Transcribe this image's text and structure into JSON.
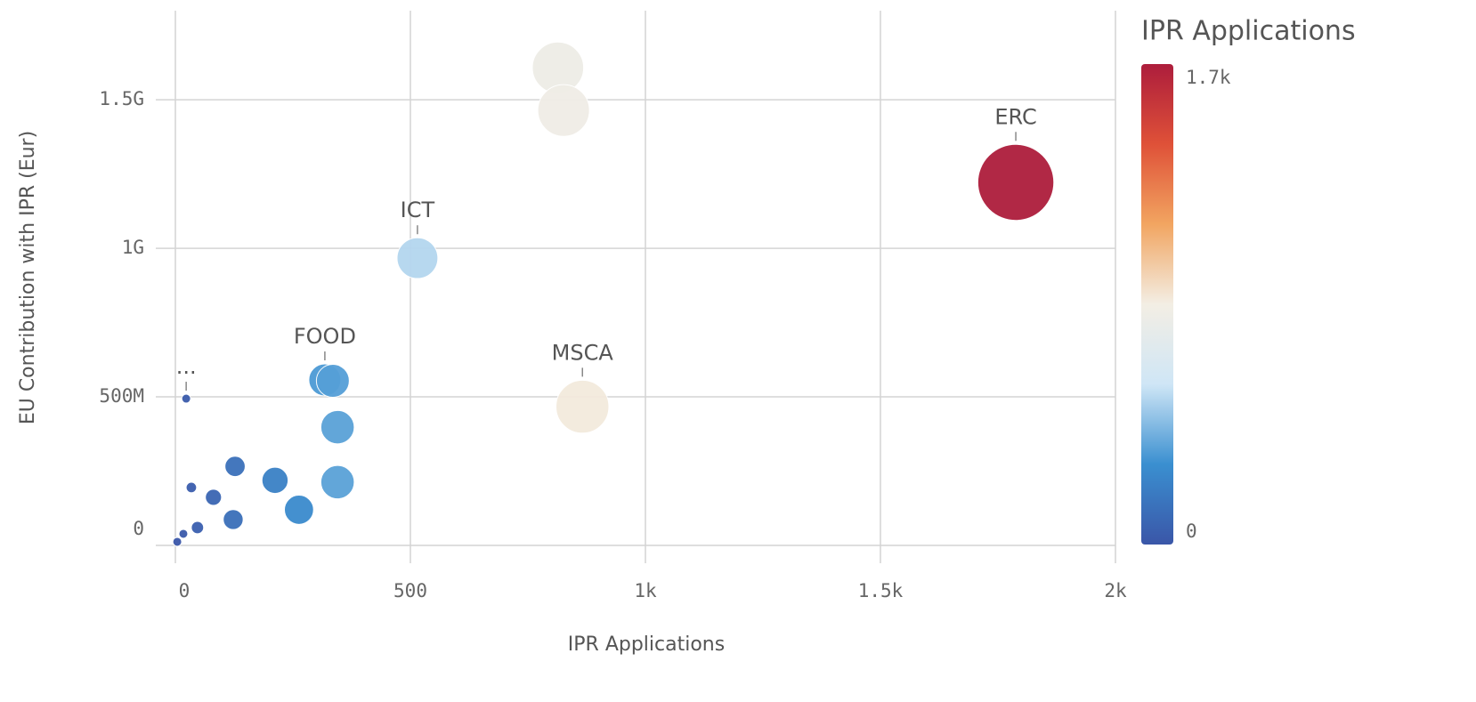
{
  "chart_data": {
    "type": "scatter",
    "xlabel": "IPR Applications",
    "ylabel": "EU Contribution with IPR (Eur)",
    "x": [
      1788,
      814,
      826,
      515,
      866,
      318,
      335,
      345,
      345,
      212,
      263,
      127,
      123,
      81,
      34,
      47,
      17,
      4,
      23
    ],
    "values": [
      1222000000,
      1608000000,
      1464000000,
      967000000,
      467000000,
      557000000,
      554000000,
      398000000,
      213000000,
      219000000,
      120000000,
      266000000,
      87000000,
      162000000,
      195000000,
      60000000,
      39000000,
      12000000,
      494000000
    ],
    "labels": [
      "ERC",
      null,
      null,
      "ICT",
      "MSCA",
      "FOOD",
      null,
      null,
      null,
      null,
      null,
      null,
      null,
      null,
      null,
      null,
      null,
      null,
      "..."
    ],
    "xlim": [
      0,
      2000
    ],
    "xticks": [
      0,
      500,
      {
        "value": 1000,
        "label": "1k"
      },
      {
        "value": 1500,
        "label": "1.5k"
      },
      {
        "value": 2000,
        "label": "2k"
      }
    ],
    "ylim": [
      0,
      1800000000
    ],
    "yticks": [
      0,
      {
        "value": 500000000,
        "label": "500M"
      },
      {
        "value": 1000000000,
        "label": "1G"
      },
      {
        "value": 1500000000,
        "label": "1.5G"
      }
    ],
    "grid": true,
    "legend_title": "IPR Applications",
    "colorlim": [
      0,
      1700
    ],
    "colorticks": [
      0,
      {
        "value": 1700,
        "label": "1.7k"
      }
    ],
    "colorscale": [
      "#3a56a8",
      "#3a8fd0",
      "#cfe6f6",
      "#f3eee4",
      "#f2a561",
      "#df5138",
      "#ad1d3c"
    ]
  }
}
